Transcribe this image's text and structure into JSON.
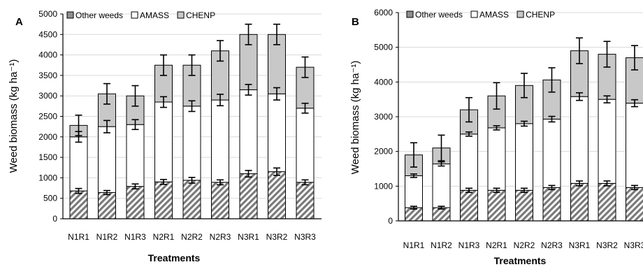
{
  "colors": {
    "other_weeds": "#8f8f8f",
    "amass": "#ffffff",
    "chenp": "#c8c8c8",
    "outline": "#000000",
    "grid": "#d9d9d9"
  },
  "chart_data": [
    {
      "panel_label": "A",
      "type": "bar",
      "stacked": true,
      "categories": [
        "N1R1",
        "N1R2",
        "N1R3",
        "N2R1",
        "N2R2",
        "N2R3",
        "N3R1",
        "N3R2",
        "N3R3"
      ],
      "xlabel": "Treatments",
      "ylabel": "Weed biomass (kg ha⁻¹)",
      "ylim": [
        0,
        5000
      ],
      "yticks": [
        0,
        500,
        1000,
        1500,
        2000,
        2500,
        3000,
        3500,
        4000,
        4500,
        5000
      ],
      "grid": true,
      "legend_position": "top-left",
      "series": [
        {
          "name": "Other weeds",
          "values": [
            680,
            640,
            790,
            900,
            940,
            890,
            1100,
            1150,
            890
          ],
          "errors": [
            60,
            50,
            60,
            60,
            70,
            60,
            80,
            90,
            60
          ]
        },
        {
          "name": "AMASS",
          "values": [
            1320,
            1610,
            1510,
            1950,
            1810,
            2010,
            2050,
            1900,
            1810
          ],
          "errors": [
            130,
            150,
            120,
            130,
            130,
            140,
            130,
            150,
            120
          ]
        },
        {
          "name": "CHENP",
          "values": [
            280,
            800,
            700,
            900,
            1000,
            1200,
            1350,
            1450,
            1000
          ],
          "errors": [
            250,
            250,
            250,
            250,
            250,
            250,
            250,
            250,
            250
          ]
        }
      ]
    },
    {
      "panel_label": "B",
      "type": "bar",
      "stacked": true,
      "categories": [
        "N1R1",
        "N1R2",
        "N1R3",
        "N2R1",
        "N2R2",
        "N2R3",
        "N3R1",
        "N3R2",
        "N3R3"
      ],
      "xlabel": "Treatments",
      "ylabel": "Weed biomass (kg ha⁻¹)",
      "ylim": [
        0,
        6000
      ],
      "yticks": [
        0,
        1000,
        2000,
        3000,
        4000,
        5000,
        6000
      ],
      "grid": true,
      "legend_position": "top-left",
      "series": [
        {
          "name": "Other weeds",
          "values": [
            380,
            380,
            880,
            880,
            880,
            960,
            1080,
            1080,
            960
          ],
          "errors": [
            40,
            40,
            60,
            60,
            60,
            60,
            70,
            70,
            60
          ]
        },
        {
          "name": "AMASS",
          "values": [
            920,
            1260,
            1620,
            1800,
            1920,
            1970,
            2500,
            2420,
            2430
          ],
          "errors": [
            50,
            60,
            60,
            60,
            70,
            80,
            110,
            100,
            100
          ]
        },
        {
          "name": "CHENP",
          "values": [
            600,
            460,
            700,
            920,
            1100,
            1130,
            1320,
            1300,
            1310
          ],
          "errors": [
            350,
            370,
            350,
            380,
            350,
            350,
            370,
            370,
            350
          ]
        }
      ]
    }
  ]
}
